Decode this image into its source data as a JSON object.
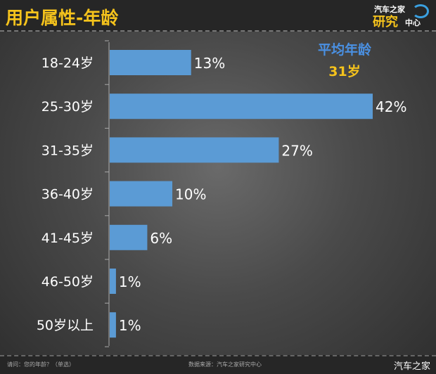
{
  "header": {
    "title": "用户属性-年龄",
    "logo_text": [
      "汽车之家",
      "研究",
      "中心"
    ]
  },
  "average": {
    "label": "平均年龄",
    "value": "31岁"
  },
  "footer": {
    "question": "请问：您的年龄？（单选）",
    "source": "数据来源：汽车之家研究中心",
    "brand": "汽车之家"
  },
  "chart_data": {
    "type": "bar",
    "orientation": "horizontal",
    "categories": [
      "18-24岁",
      "25-30岁",
      "31-35岁",
      "36-40岁",
      "41-45岁",
      "46-50岁",
      "50岁以上"
    ],
    "values": [
      13,
      42,
      27,
      10,
      6,
      1,
      1
    ],
    "labels": [
      "13%",
      "42%",
      "27%",
      "10%",
      "6%",
      "1%",
      "1%"
    ],
    "unit": "%",
    "xlim": [
      0,
      42
    ],
    "grid": false,
    "bar_color": "#5b9bd5"
  }
}
